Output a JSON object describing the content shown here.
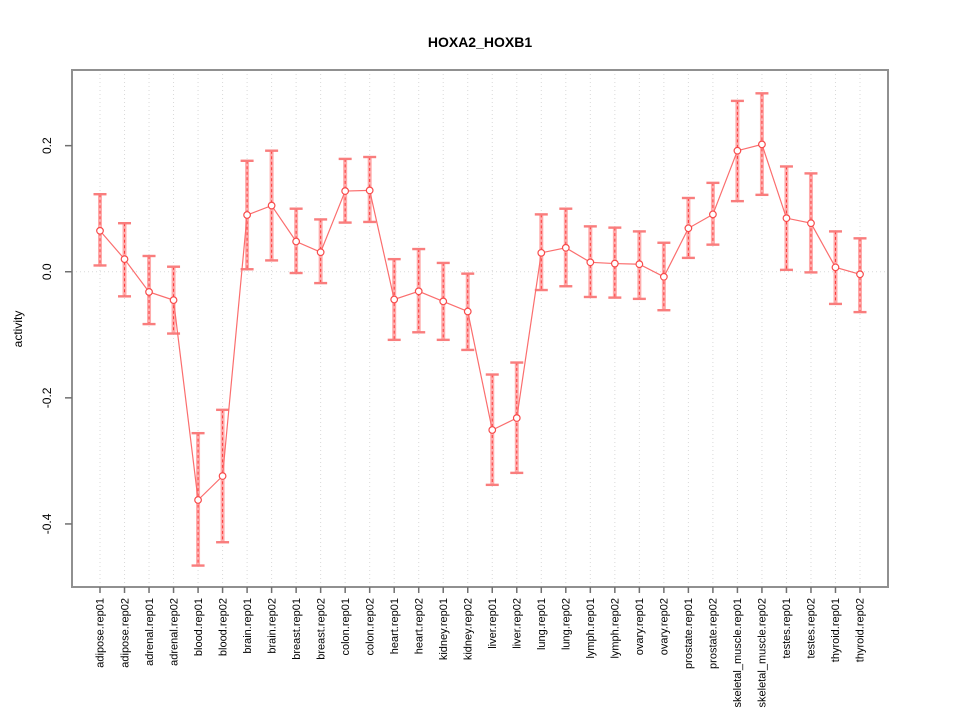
{
  "chart_data": {
    "type": "line",
    "style": "points-with-error-bars",
    "title": "HOXA2_HOXB1",
    "xlabel": "",
    "ylabel": "activity",
    "legend": "none",
    "grid": "vertical-dotted-per-category-plus-dotted-zero-line",
    "marker": "open-circle",
    "error_bars": true,
    "ylim": [
      -0.5,
      0.32
    ],
    "yticks": [
      0.2,
      0.0,
      -0.2,
      -0.4
    ],
    "ytick_labels": [
      "0.2",
      "0.0",
      "-0.2",
      "-0.4"
    ],
    "categories": [
      "adipose.rep01",
      "adipose.rep02",
      "adrenal.rep01",
      "adrenal.rep02",
      "blood.rep01",
      "blood.rep02",
      "brain.rep01",
      "brain.rep02",
      "breast.rep01",
      "breast.rep02",
      "colon.rep01",
      "colon.rep02",
      "heart.rep01",
      "heart.rep02",
      "kidney.rep01",
      "kidney.rep02",
      "liver.rep01",
      "liver.rep02",
      "lung.rep01",
      "lung.rep02",
      "lymph.rep01",
      "lymph.rep02",
      "ovary.rep01",
      "ovary.rep02",
      "prostate.rep01",
      "prostate.rep02",
      "skeletal_muscle.rep01",
      "skeletal_muscle.rep02",
      "testes.rep01",
      "testes.rep02",
      "thyroid.rep01",
      "thyroid.rep02"
    ],
    "series": [
      {
        "name": "activity",
        "values": [
          0.065,
          0.02,
          -0.032,
          -0.045,
          -0.362,
          -0.324,
          0.09,
          0.105,
          0.048,
          0.031,
          0.128,
          0.129,
          -0.044,
          -0.031,
          -0.047,
          -0.063,
          -0.251,
          -0.232,
          0.03,
          0.038,
          0.015,
          0.013,
          0.012,
          -0.008,
          0.069,
          0.091,
          0.192,
          0.202,
          0.085,
          0.077,
          0.007,
          -0.004
        ],
        "lower": [
          0.01,
          -0.039,
          -0.083,
          -0.098,
          -0.466,
          -0.429,
          0.004,
          0.018,
          -0.002,
          -0.018,
          0.078,
          0.079,
          -0.108,
          -0.096,
          -0.108,
          -0.124,
          -0.338,
          -0.319,
          -0.029,
          -0.023,
          -0.04,
          -0.041,
          -0.043,
          -0.061,
          0.022,
          0.043,
          0.112,
          0.122,
          0.003,
          -0.001,
          -0.051,
          -0.064
        ],
        "upper": [
          0.123,
          0.077,
          0.025,
          0.008,
          -0.256,
          -0.219,
          0.176,
          0.192,
          0.1,
          0.083,
          0.179,
          0.182,
          0.02,
          0.036,
          0.014,
          -0.003,
          -0.163,
          -0.144,
          0.091,
          0.1,
          0.072,
          0.07,
          0.064,
          0.046,
          0.117,
          0.141,
          0.271,
          0.283,
          0.167,
          0.156,
          0.064,
          0.053
        ]
      }
    ],
    "colors": {
      "point": "#f84b4b",
      "line": "#fb6e6e",
      "error_band": "#ffabab",
      "error_dash": "#fb3b3b",
      "cap": "#f97d7d",
      "grid": "#d9d9d9",
      "zero_line": "#d9d9d9",
      "frame": "#909090",
      "tick": "#707070",
      "text": "#000000"
    }
  }
}
